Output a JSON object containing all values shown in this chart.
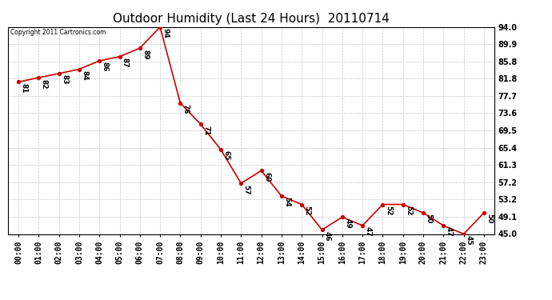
{
  "title": "Outdoor Humidity (Last 24 Hours)  20110714",
  "copyright": "Copyright 2011 Cartronics.com",
  "x_labels": [
    "00:00",
    "01:00",
    "02:00",
    "03:00",
    "04:00",
    "05:00",
    "06:00",
    "07:00",
    "08:00",
    "09:00",
    "10:00",
    "11:00",
    "12:00",
    "13:00",
    "14:00",
    "15:00",
    "16:00",
    "17:00",
    "18:00",
    "19:00",
    "20:00",
    "21:00",
    "22:00",
    "23:00"
  ],
  "y_values": [
    81,
    82,
    83,
    84,
    86,
    87,
    89,
    94,
    76,
    71,
    65,
    57,
    60,
    54,
    52,
    46,
    49,
    47,
    52,
    52,
    50,
    47,
    45,
    50
  ],
  "y_min": 45.0,
  "y_max": 94.0,
  "y_ticks": [
    45.0,
    49.1,
    53.2,
    57.2,
    61.3,
    65.4,
    69.5,
    73.6,
    77.7,
    81.8,
    85.8,
    89.9,
    94.0
  ],
  "line_color": "#cc0000",
  "marker_color": "#cc0000",
  "bg_color": "#ffffff",
  "grid_color": "#c8c8c8",
  "title_fontsize": 11,
  "tick_fontsize": 7,
  "label_fontsize": 6.5,
  "fig_width": 6.9,
  "fig_height": 3.75,
  "dpi": 100
}
